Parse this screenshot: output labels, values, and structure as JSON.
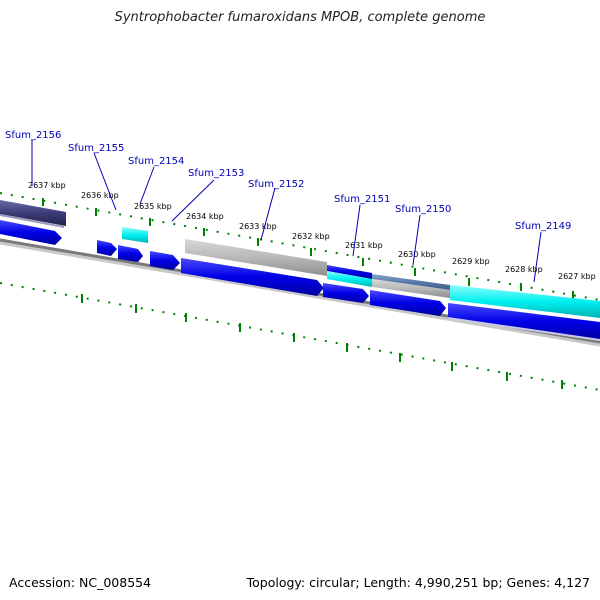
{
  "title": "Syntrophobacter fumaroxidans MPOB, complete genome",
  "footer": {
    "accession": "Accession: NC_008554",
    "summary": "Topology: circular; Length: 4,990,251 bp; Genes: 4,127"
  },
  "ticks": [
    "2637 kbp",
    "2636 kbp",
    "2635 kbp",
    "2634 kbp",
    "2633 kbp",
    "2632 kbp",
    "2631 kbp",
    "2630 kbp",
    "2629 kbp",
    "2628 kbp",
    "2627 kbp"
  ],
  "genes": [
    "Sfum_2156",
    "Sfum_2155",
    "Sfum_2154",
    "Sfum_2153",
    "Sfum_2152",
    "Sfum_2151",
    "Sfum_2150",
    "Sfum_2149"
  ],
  "colors": {
    "cds": "#0000e6",
    "cyan": "#00f0f0",
    "gray": "#b4b4b4",
    "navy": "#3c3c78",
    "steel": "#5a7aa8",
    "backbone": "#787878",
    "tick_mark": "#008000",
    "label": "#0000b4"
  }
}
